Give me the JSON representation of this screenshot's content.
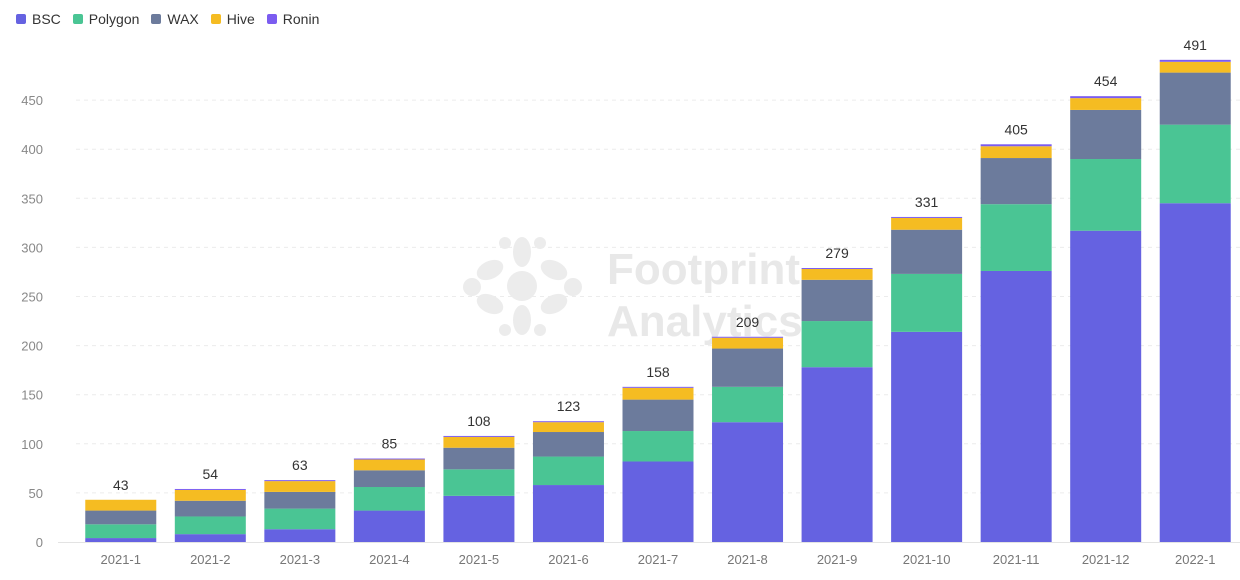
{
  "legend": [
    {
      "name": "BSC",
      "color": "#6562e1"
    },
    {
      "name": "Polygon",
      "color": "#4ac594"
    },
    {
      "name": "WAX",
      "color": "#6c7b9c"
    },
    {
      "name": "Hive",
      "color": "#f5bc22"
    },
    {
      "name": "Ronin",
      "color": "#7b5cf0"
    }
  ],
  "watermark": {
    "line1": "Footprint",
    "line2": "Analytics"
  },
  "chart_data": {
    "type": "bar",
    "stacked": true,
    "categories": [
      "2021-1",
      "2021-2",
      "2021-3",
      "2021-4",
      "2021-5",
      "2021-6",
      "2021-7",
      "2021-8",
      "2021-9",
      "2021-10",
      "2021-11",
      "2021-12",
      "2022-1"
    ],
    "series": [
      {
        "name": "BSC",
        "color": "#6562e1",
        "values": [
          4,
          8,
          13,
          32,
          47,
          58,
          82,
          122,
          178,
          214,
          276,
          317,
          345
        ]
      },
      {
        "name": "Polygon",
        "color": "#4ac594",
        "values": [
          14,
          18,
          21,
          24,
          27,
          29,
          31,
          36,
          47,
          59,
          68,
          73,
          80
        ]
      },
      {
        "name": "WAX",
        "color": "#6c7b9c",
        "values": [
          14,
          16,
          17,
          17,
          22,
          25,
          32,
          39,
          42,
          45,
          47,
          50,
          53
        ]
      },
      {
        "name": "Hive",
        "color": "#f5bc22",
        "values": [
          11,
          11,
          11,
          11,
          11,
          10,
          12,
          11,
          11,
          12,
          12,
          12,
          11
        ]
      },
      {
        "name": "Ronin",
        "color": "#7b5cf0",
        "values": [
          0,
          1,
          1,
          1,
          1,
          1,
          1,
          1,
          1,
          1,
          2,
          2,
          2
        ]
      }
    ],
    "totals": [
      43,
      54,
      63,
      85,
      108,
      123,
      158,
      209,
      279,
      331,
      405,
      454,
      491
    ],
    "y_ticks": [
      0,
      50,
      100,
      150,
      200,
      250,
      300,
      350,
      400,
      450
    ],
    "ylim": [
      0,
      500
    ],
    "grid": true,
    "legend_position": "top-left"
  }
}
